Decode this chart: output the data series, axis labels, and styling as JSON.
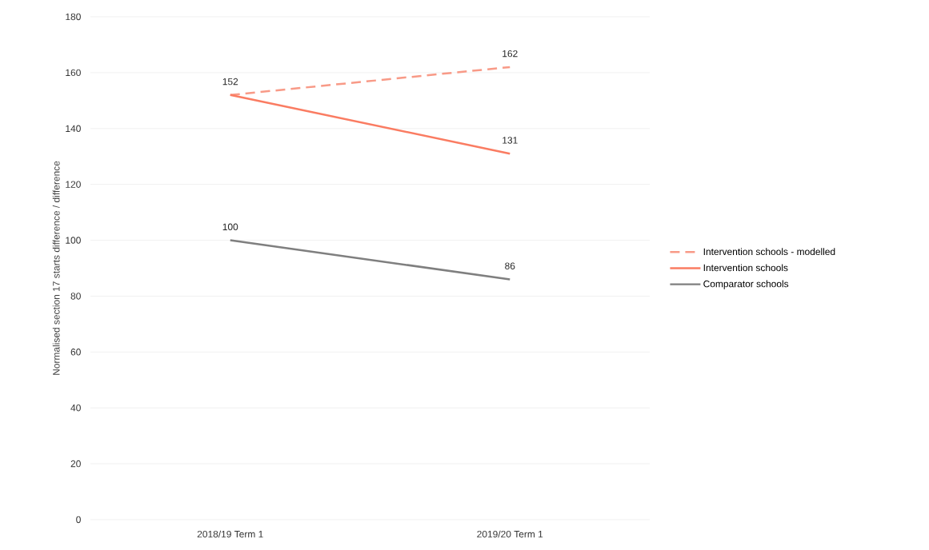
{
  "chart_data": {
    "type": "line",
    "ylabel": "Normalised section 17 starts difference / difference",
    "categories": [
      "2018/19 Term 1",
      "2019/20 Term 1"
    ],
    "series": [
      {
        "name": "Intervention schools - modelled",
        "color": "#f89a87",
        "values": [
          152,
          162
        ],
        "line_style": "dashed",
        "value_labels": [
          null,
          "162"
        ]
      },
      {
        "name": "Intervention schools",
        "color": "#fa7c62",
        "values": [
          152,
          131
        ],
        "line_style": "solid",
        "value_labels": [
          "152",
          "131"
        ]
      },
      {
        "name": "Comparator schools",
        "color": "#7f7f7f",
        "values": [
          100,
          86
        ],
        "line_style": "solid",
        "value_labels": [
          "100",
          "86"
        ]
      }
    ],
    "ylim": [
      0,
      180
    ],
    "yticks": [
      0,
      20,
      40,
      60,
      80,
      100,
      120,
      140,
      160,
      180
    ],
    "grid": "y",
    "legend": "right",
    "marker": "none"
  }
}
